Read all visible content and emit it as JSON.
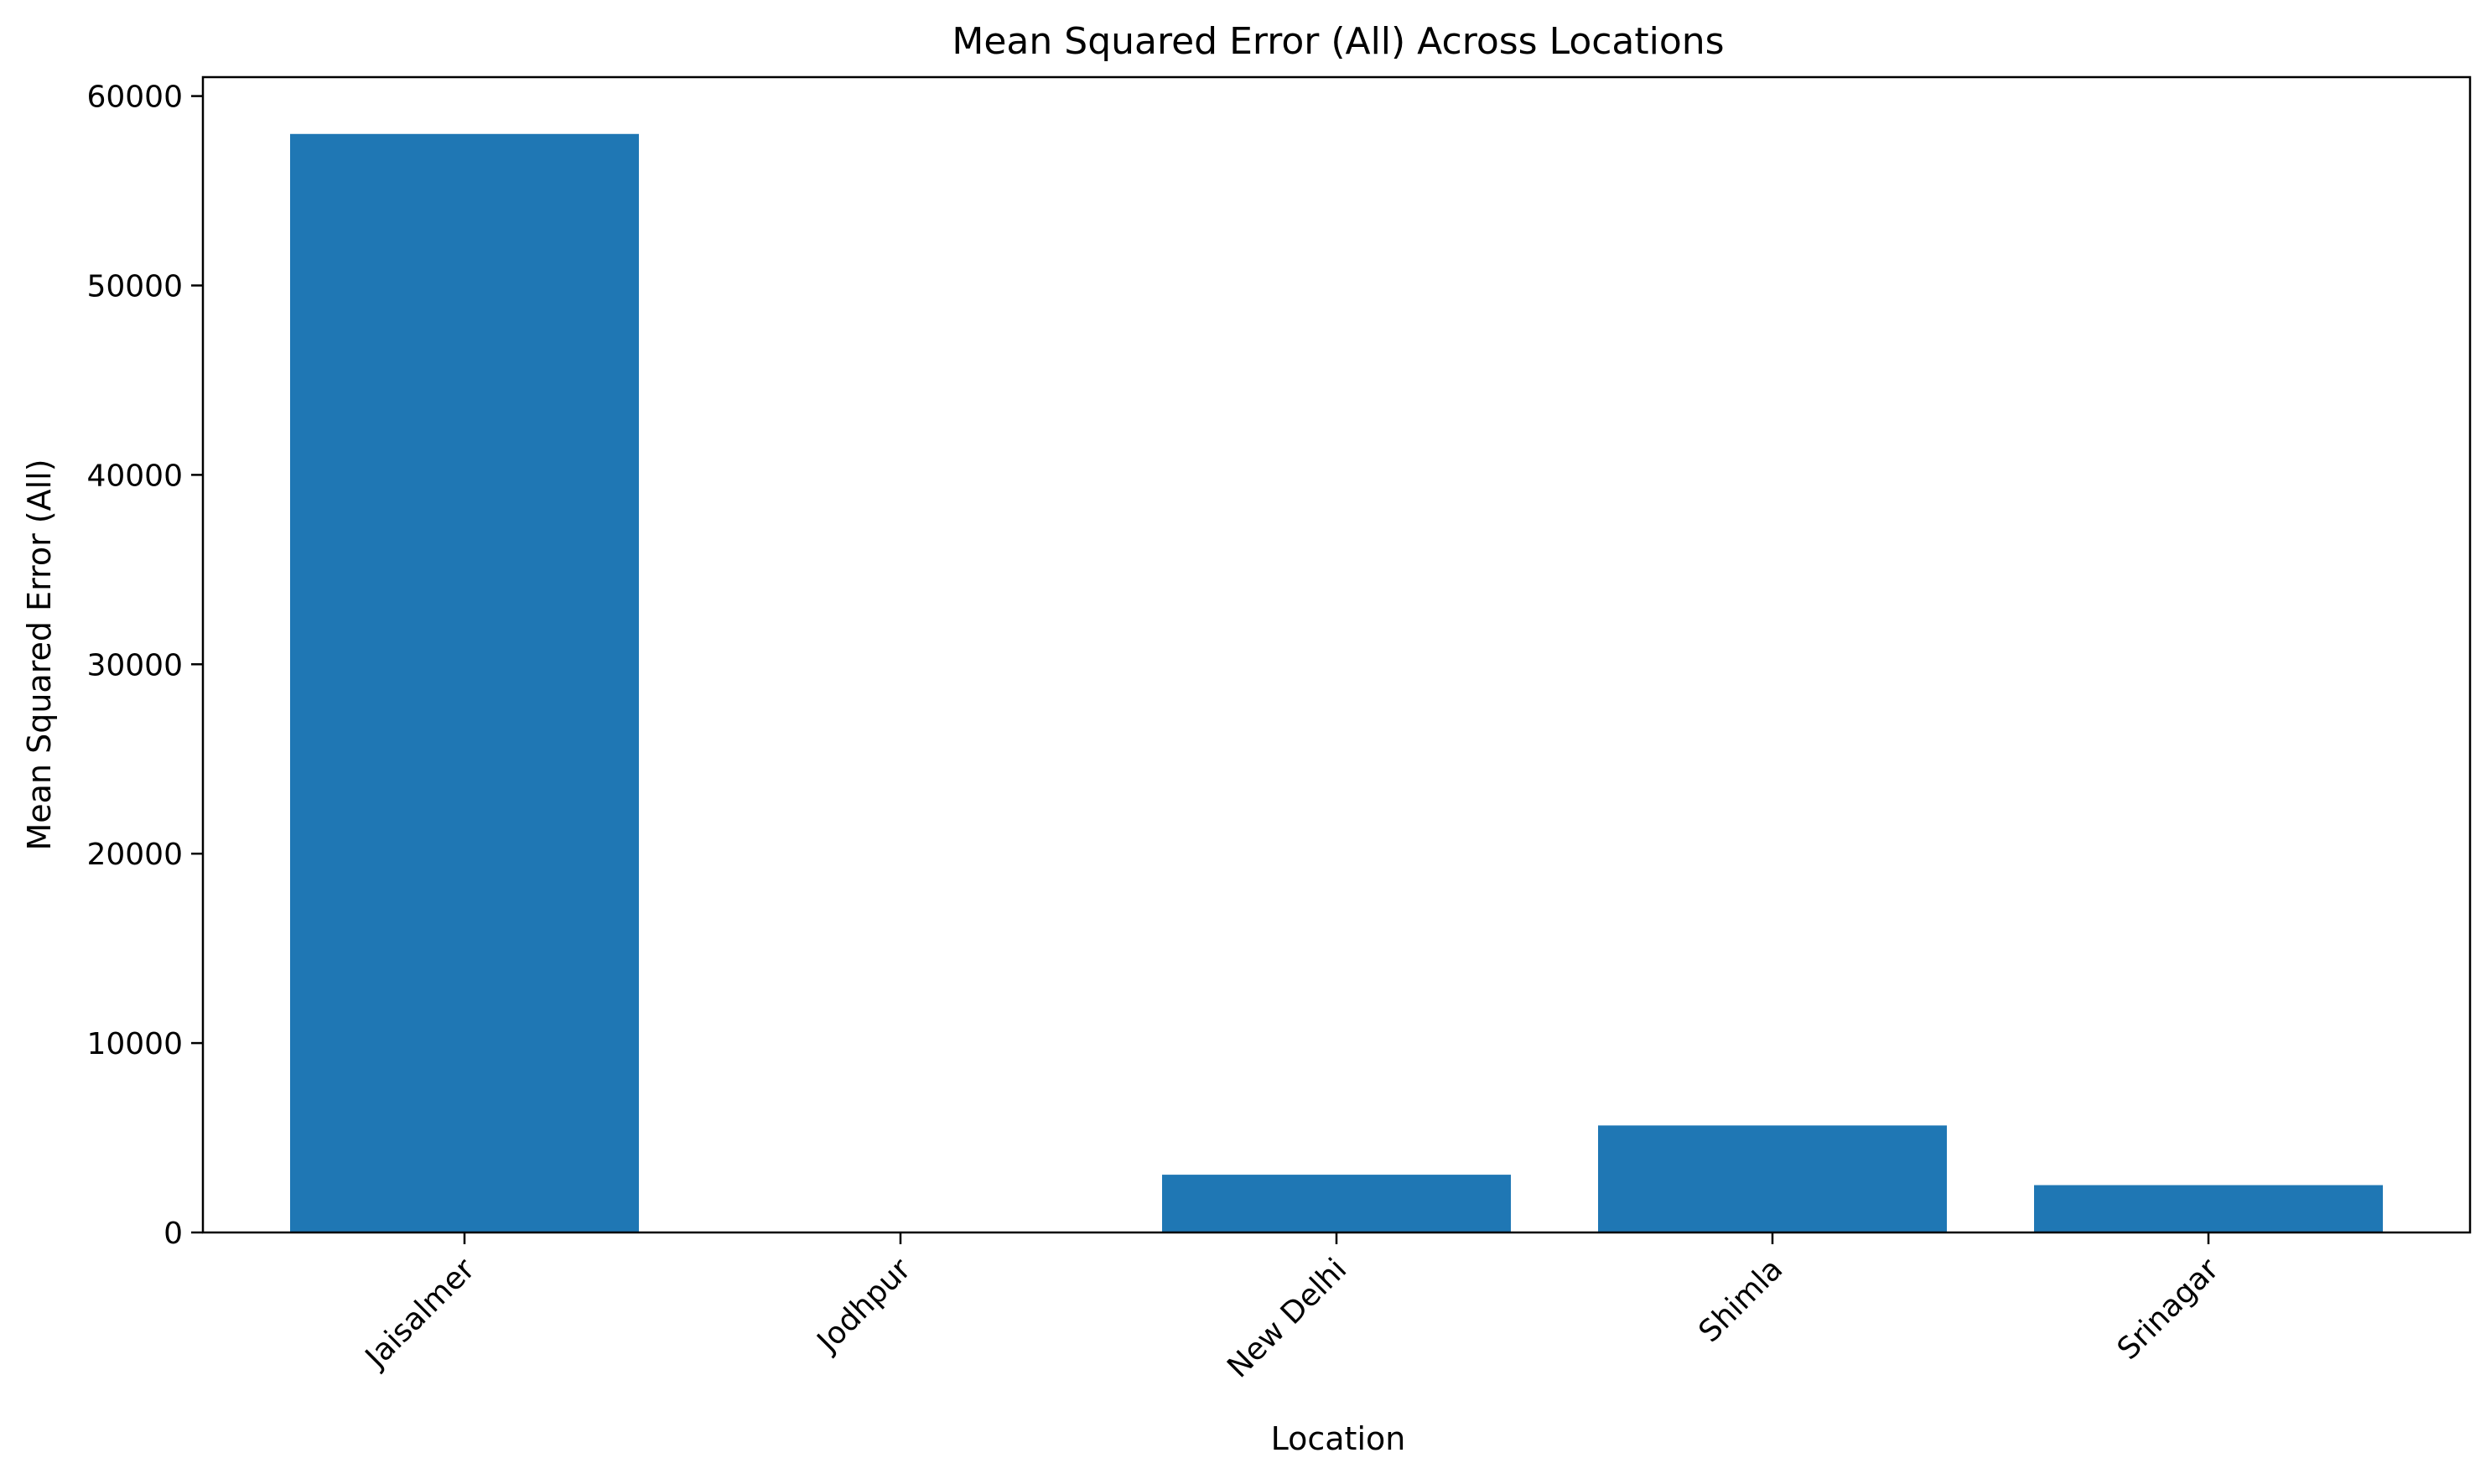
{
  "chart_data": {
    "type": "bar",
    "title": "Mean Squared Error (All) Across Locations",
    "xlabel": "Location",
    "ylabel": "Mean Squared Error (All)",
    "categories": [
      "Jaisalmer",
      "Jodhpur",
      "New Delhi",
      "Shimla",
      "Srinagar"
    ],
    "values": [
      58000,
      15,
      3050,
      5650,
      2500
    ],
    "ylim": [
      0,
      61000
    ],
    "yticks": [
      0,
      10000,
      20000,
      30000,
      40000,
      50000,
      60000
    ],
    "grid": false,
    "legend": "none",
    "bar_color": "#1f77b4"
  }
}
